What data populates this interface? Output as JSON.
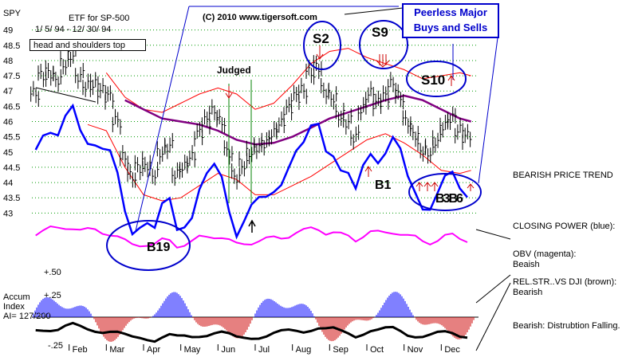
{
  "header": {
    "symbol": "SPY",
    "etf_label": "ETF for SP-500",
    "date_range": "1/ 5/ 94 - 12/ 30/ 94",
    "copyright": "(C) 2010 www.tigersoft.com",
    "title_line1": "Peerless Major",
    "title_line2": "Buys and Sells",
    "pattern_label": "head and shoulders top",
    "judged_label": "Judged"
  },
  "signals": {
    "s2": "S2",
    "s9": "S9",
    "s10": "S10",
    "b1": "B1",
    "b19": "B19",
    "b_cluster": "B3B6"
  },
  "indicator_labels": {
    "accum_line1": "Accum",
    "accum_line2": "Index",
    "accum_line3": "AI= 127/200",
    "plus50": "+.50",
    "plus25": "+.25",
    "minus25": "-.25"
  },
  "side_notes": {
    "bearish_trend": "BEARISH PRICE TREND",
    "closing_power": "CLOSING POWER (blue):",
    "obv_line1": "OBV (magenta):",
    "obv_line2": "Beaish",
    "relstr_line1": "REL.STR..VS DJI (brown):",
    "relstr_line2": "Bearish",
    "distribution": "Bearish: Distrubtion Falling."
  },
  "colors": {
    "price": "#000000",
    "bands": "#ff0000",
    "ma": "#800080",
    "closing_power": "#0000ff",
    "obv": "#ff00ff",
    "annotation": "#0000cc",
    "accum_pos": "#0000ff",
    "accum_neg": "#cc0000"
  },
  "chart_data": {
    "type": "line",
    "title": "ETF for SP-500",
    "y_ticks": [
      49,
      48.5,
      48,
      47.5,
      47,
      46.5,
      46,
      45.5,
      45,
      44.5,
      44,
      43.5,
      43
    ],
    "ylim": [
      42.8,
      49.2
    ],
    "x_ticks": [
      "Feb",
      "Mar",
      "Apr",
      "May",
      "Jun",
      "Jul",
      "Aug",
      "Sep",
      "Oct",
      "Nov",
      "Dec"
    ],
    "x_range_months": [
      0,
      12
    ],
    "series": [
      {
        "name": "price",
        "x": [
          0.1,
          0.3,
          0.5,
          0.7,
          0.9,
          1.1,
          1.3,
          1.5,
          1.7,
          1.9,
          2.1,
          2.3,
          2.5,
          2.7,
          2.9,
          3.1,
          3.3,
          3.5,
          3.7,
          3.9,
          4.1,
          4.3,
          4.5,
          4.7,
          4.9,
          5.1,
          5.3,
          5.5,
          5.7,
          5.9,
          6.1,
          6.3,
          6.5,
          6.7,
          6.9,
          7.1,
          7.3,
          7.5,
          7.7,
          7.9,
          8.1,
          8.3,
          8.5,
          8.7,
          8.9,
          9.1,
          9.3,
          9.5,
          9.7,
          9.9,
          10.1,
          10.3,
          10.5,
          10.7,
          10.9,
          11.1,
          11.3,
          11.5,
          11.7
        ],
        "values": [
          46.9,
          47.5,
          47.6,
          47.4,
          47.9,
          48.2,
          47.5,
          47.2,
          47.2,
          47.0,
          46.8,
          46.0,
          44.8,
          44.2,
          44.5,
          44.6,
          44.3,
          45.0,
          45.2,
          44.3,
          44.5,
          44.8,
          45.6,
          46.0,
          46.3,
          46.0,
          45.0,
          44.2,
          44.6,
          45.0,
          45.2,
          45.3,
          45.6,
          45.9,
          46.4,
          46.8,
          47.0,
          47.6,
          47.8,
          47.0,
          46.8,
          46.2,
          46.0,
          45.5,
          46.4,
          46.9,
          46.6,
          46.8,
          47.2,
          46.8,
          46.0,
          45.6,
          45.1,
          45.0,
          45.4,
          45.9,
          46.1,
          45.7,
          45.5
        ]
      },
      {
        "name": "moving average",
        "x": [
          2.5,
          3.0,
          3.5,
          4.0,
          4.5,
          5.0,
          5.5,
          6.0,
          6.5,
          7.0,
          7.5,
          8.0,
          8.5,
          9.0,
          9.5,
          10.0,
          10.5,
          11.0,
          11.5,
          11.8
        ],
        "values": [
          46.7,
          46.4,
          46.1,
          46.0,
          45.9,
          45.7,
          45.4,
          45.25,
          45.3,
          45.5,
          45.8,
          46.1,
          46.3,
          46.5,
          46.7,
          46.85,
          46.7,
          46.4,
          46.1,
          46.0
        ]
      },
      {
        "name": "upper band",
        "x": [
          2.0,
          2.5,
          3.0,
          3.5,
          4.0,
          4.5,
          5.0,
          5.5,
          6.0,
          6.5,
          7.0,
          7.5,
          8.0,
          8.5,
          9.0,
          9.5,
          10.0,
          10.5,
          11.0,
          11.5,
          11.8
        ],
        "values": [
          47.6,
          46.8,
          46.4,
          46.3,
          46.6,
          46.9,
          47.1,
          46.9,
          46.4,
          46.6,
          47.2,
          47.9,
          48.3,
          48.4,
          48.1,
          47.9,
          47.7,
          47.4,
          47.5,
          47.6,
          47.5
        ]
      },
      {
        "name": "lower band",
        "x": [
          1.5,
          2.0,
          2.5,
          3.0,
          3.5,
          4.0,
          4.5,
          5.0,
          5.5,
          6.0,
          6.5,
          7.0,
          7.5,
          8.0,
          8.5,
          9.0,
          9.5,
          10.0,
          10.5,
          11.0,
          11.5,
          11.8
        ],
        "values": [
          45.9,
          45.7,
          44.5,
          43.6,
          43.4,
          43.5,
          43.9,
          44.3,
          44.1,
          43.6,
          43.6,
          43.9,
          44.2,
          44.6,
          45.0,
          45.4,
          45.6,
          45.3,
          44.9,
          44.4,
          44.3,
          44.4
        ]
      }
    ]
  }
}
